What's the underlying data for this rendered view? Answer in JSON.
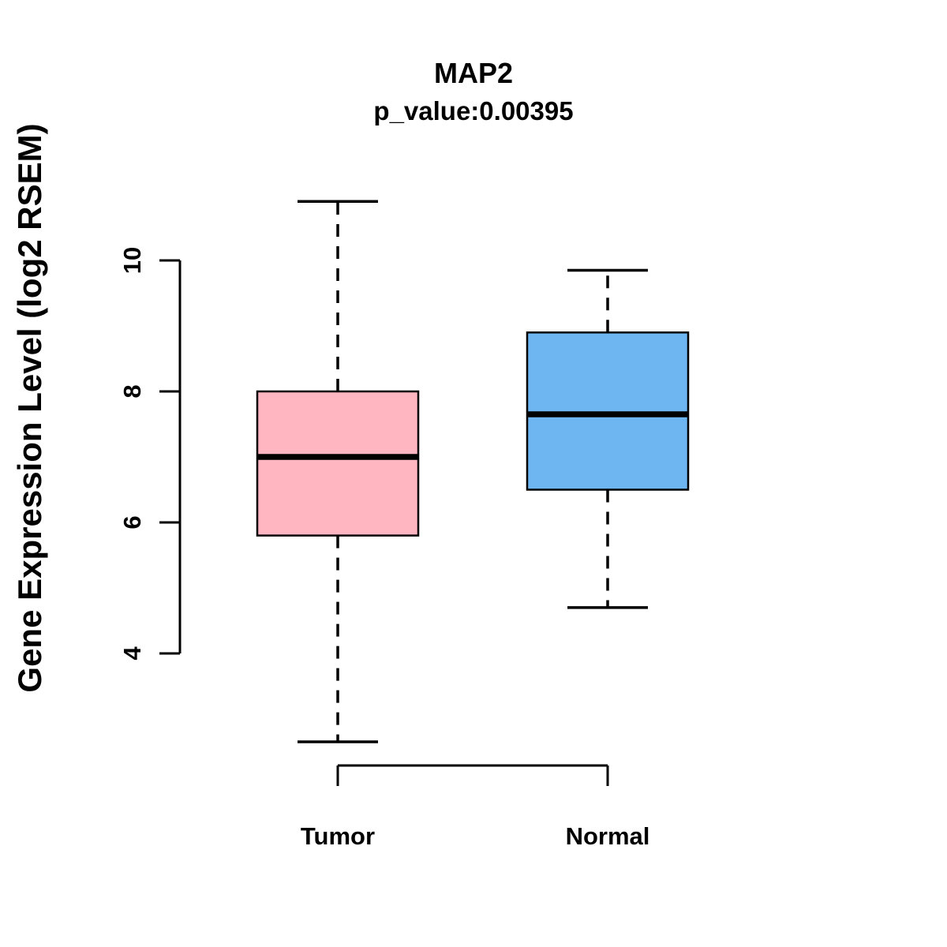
{
  "title": "MAP2",
  "subtitle": "p_value:0.00395",
  "ylabel": "Gene Expression Level (log2 RSEM)",
  "chart_data": {
    "type": "boxplot",
    "title": "MAP2",
    "subtitle": "p_value:0.00395",
    "ylabel": "Gene Expression Level (log2 RSEM)",
    "categories": [
      "Tumor",
      "Normal"
    ],
    "yticks": [
      4,
      6,
      8,
      10
    ],
    "ylim": [
      2.2,
      11.2
    ],
    "grid": false,
    "legend": false,
    "series": [
      {
        "name": "Tumor",
        "color": "#FFB6C1",
        "min": 2.65,
        "q1": 5.8,
        "median": 7.0,
        "q3": 8.0,
        "max": 10.9
      },
      {
        "name": "Normal",
        "color": "#6EB6F2",
        "min": 4.7,
        "q1": 6.5,
        "median": 7.65,
        "q3": 8.9,
        "max": 9.85
      }
    ]
  }
}
